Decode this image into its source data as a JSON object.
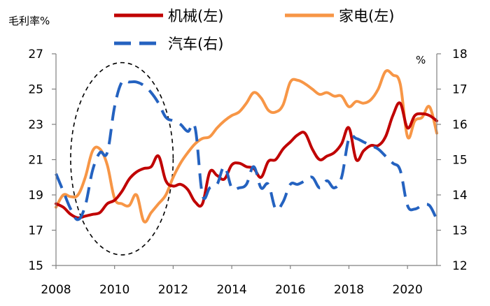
{
  "chart_data": {
    "type": "line",
    "title": "",
    "left_axis": {
      "label": "毛利率%",
      "ylim": [
        15,
        27
      ],
      "ticks": [
        15,
        17,
        19,
        21,
        23,
        25,
        27
      ],
      "tick_labels": [
        "15",
        "17",
        "19",
        "21",
        "23",
        "25",
        "27"
      ]
    },
    "right_axis": {
      "label": "%",
      "ylim": [
        12,
        18
      ],
      "ticks": [
        12,
        13,
        14,
        15,
        16,
        17,
        18
      ],
      "tick_labels": [
        "12",
        "13",
        "14",
        "15",
        "16",
        "17",
        "18"
      ]
    },
    "x_axis": {
      "xlim": [
        2008,
        2021
      ],
      "ticks": [
        2008,
        2010,
        2012,
        2014,
        2016,
        2018,
        2020
      ],
      "tick_labels": [
        "2008",
        "2010",
        "2012",
        "2014",
        "2016",
        "2018",
        "2020"
      ]
    },
    "series": [
      {
        "name": "机械(左)",
        "axis": "left",
        "color": "#C00000",
        "style": "solid",
        "points": [
          [
            2008.0,
            18.5
          ],
          [
            2008.25,
            18.3
          ],
          [
            2008.5,
            17.9
          ],
          [
            2008.75,
            17.7
          ],
          [
            2009.0,
            17.8
          ],
          [
            2009.25,
            17.9
          ],
          [
            2009.5,
            18.0
          ],
          [
            2009.75,
            18.5
          ],
          [
            2010.0,
            18.7
          ],
          [
            2010.25,
            19.2
          ],
          [
            2010.5,
            19.9
          ],
          [
            2010.75,
            20.3
          ],
          [
            2011.0,
            20.5
          ],
          [
            2011.25,
            20.6
          ],
          [
            2011.5,
            21.2
          ],
          [
            2011.75,
            19.8
          ],
          [
            2012.0,
            19.5
          ],
          [
            2012.25,
            19.6
          ],
          [
            2012.5,
            19.3
          ],
          [
            2012.75,
            18.6
          ],
          [
            2013.0,
            18.5
          ],
          [
            2013.25,
            20.3
          ],
          [
            2013.5,
            20.1
          ],
          [
            2013.75,
            19.9
          ],
          [
            2014.0,
            20.7
          ],
          [
            2014.25,
            20.8
          ],
          [
            2014.5,
            20.6
          ],
          [
            2014.75,
            20.5
          ],
          [
            2015.0,
            20.0
          ],
          [
            2015.25,
            20.9
          ],
          [
            2015.5,
            21.0
          ],
          [
            2015.75,
            21.6
          ],
          [
            2016.0,
            22.0
          ],
          [
            2016.25,
            22.4
          ],
          [
            2016.5,
            22.5
          ],
          [
            2016.75,
            21.6
          ],
          [
            2017.0,
            21.0
          ],
          [
            2017.25,
            21.2
          ],
          [
            2017.5,
            21.4
          ],
          [
            2017.75,
            21.9
          ],
          [
            2018.0,
            22.8
          ],
          [
            2018.25,
            21.0
          ],
          [
            2018.5,
            21.5
          ],
          [
            2018.75,
            21.8
          ],
          [
            2019.0,
            21.8
          ],
          [
            2019.25,
            22.3
          ],
          [
            2019.5,
            23.5
          ],
          [
            2019.75,
            24.2
          ],
          [
            2020.0,
            22.8
          ],
          [
            2020.25,
            23.5
          ],
          [
            2020.5,
            23.6
          ],
          [
            2020.75,
            23.5
          ],
          [
            2021.0,
            23.2
          ]
        ]
      },
      {
        "name": "家电(左)",
        "axis": "left",
        "color": "#F79646",
        "style": "solid",
        "points": [
          [
            2008.0,
            18.3
          ],
          [
            2008.25,
            19.0
          ],
          [
            2008.5,
            18.9
          ],
          [
            2008.75,
            19.0
          ],
          [
            2009.0,
            20.0
          ],
          [
            2009.25,
            21.5
          ],
          [
            2009.5,
            21.6
          ],
          [
            2009.75,
            20.7
          ],
          [
            2010.0,
            18.8
          ],
          [
            2010.25,
            18.5
          ],
          [
            2010.5,
            18.4
          ],
          [
            2010.75,
            19.0
          ],
          [
            2011.0,
            17.5
          ],
          [
            2011.25,
            18.0
          ],
          [
            2011.5,
            18.5
          ],
          [
            2011.75,
            19.0
          ],
          [
            2012.0,
            20.0
          ],
          [
            2012.25,
            20.8
          ],
          [
            2012.5,
            21.4
          ],
          [
            2012.75,
            21.9
          ],
          [
            2013.0,
            22.2
          ],
          [
            2013.25,
            22.3
          ],
          [
            2013.5,
            22.8
          ],
          [
            2013.75,
            23.2
          ],
          [
            2014.0,
            23.5
          ],
          [
            2014.25,
            23.7
          ],
          [
            2014.5,
            24.2
          ],
          [
            2014.75,
            24.8
          ],
          [
            2015.0,
            24.5
          ],
          [
            2015.25,
            23.8
          ],
          [
            2015.5,
            23.7
          ],
          [
            2015.75,
            24.1
          ],
          [
            2016.0,
            25.4
          ],
          [
            2016.25,
            25.5
          ],
          [
            2016.5,
            25.3
          ],
          [
            2016.75,
            25.0
          ],
          [
            2017.0,
            24.7
          ],
          [
            2017.25,
            24.8
          ],
          [
            2017.5,
            24.6
          ],
          [
            2017.75,
            24.6
          ],
          [
            2018.0,
            24.0
          ],
          [
            2018.25,
            24.3
          ],
          [
            2018.5,
            24.2
          ],
          [
            2018.75,
            24.4
          ],
          [
            2019.0,
            25.0
          ],
          [
            2019.25,
            26.0
          ],
          [
            2019.5,
            25.8
          ],
          [
            2019.75,
            25.3
          ],
          [
            2020.0,
            22.3
          ],
          [
            2020.25,
            23.2
          ],
          [
            2020.5,
            23.4
          ],
          [
            2020.75,
            24.0
          ],
          [
            2021.0,
            22.5
          ]
        ]
      },
      {
        "name": "汽车(右)",
        "axis": "right",
        "color": "#2462C0",
        "style": "dashed",
        "points": [
          [
            2008.0,
            14.6
          ],
          [
            2008.25,
            14.1
          ],
          [
            2008.5,
            13.6
          ],
          [
            2008.75,
            13.3
          ],
          [
            2009.0,
            13.7
          ],
          [
            2009.25,
            14.7
          ],
          [
            2009.5,
            15.2
          ],
          [
            2009.75,
            15.2
          ],
          [
            2010.0,
            16.5
          ],
          [
            2010.25,
            17.2
          ],
          [
            2010.5,
            17.2
          ],
          [
            2010.75,
            17.2
          ],
          [
            2011.0,
            17.1
          ],
          [
            2011.25,
            16.9
          ],
          [
            2011.5,
            16.6
          ],
          [
            2011.75,
            16.2
          ],
          [
            2012.0,
            16.1
          ],
          [
            2012.25,
            16.0
          ],
          [
            2012.5,
            15.8
          ],
          [
            2012.75,
            15.9
          ],
          [
            2013.0,
            14.0
          ],
          [
            2013.25,
            14.2
          ],
          [
            2013.5,
            14.3
          ],
          [
            2013.75,
            14.8
          ],
          [
            2014.0,
            14.2
          ],
          [
            2014.25,
            14.2
          ],
          [
            2014.5,
            14.3
          ],
          [
            2014.75,
            14.8
          ],
          [
            2015.0,
            14.2
          ],
          [
            2015.25,
            14.3
          ],
          [
            2015.5,
            13.6
          ],
          [
            2015.75,
            13.8
          ],
          [
            2016.0,
            14.3
          ],
          [
            2016.25,
            14.3
          ],
          [
            2016.5,
            14.4
          ],
          [
            2016.75,
            14.5
          ],
          [
            2017.0,
            14.2
          ],
          [
            2017.25,
            14.4
          ],
          [
            2017.5,
            14.2
          ],
          [
            2017.75,
            14.5
          ],
          [
            2018.0,
            15.6
          ],
          [
            2018.25,
            15.6
          ],
          [
            2018.5,
            15.5
          ],
          [
            2018.75,
            15.4
          ],
          [
            2019.0,
            15.3
          ],
          [
            2019.25,
            15.1
          ],
          [
            2019.5,
            14.9
          ],
          [
            2019.75,
            14.7
          ],
          [
            2020.0,
            13.7
          ],
          [
            2020.25,
            13.6
          ],
          [
            2020.5,
            13.7
          ],
          [
            2020.75,
            13.7
          ],
          [
            2021.0,
            13.3
          ]
        ]
      }
    ],
    "annotation": {
      "shape": "dashed-ellipse",
      "x_range": [
        2008.5,
        2012.0
      ],
      "y_range_left": [
        15.6,
        26.5
      ]
    }
  },
  "legend": {
    "items": [
      {
        "label": "机械(左)",
        "color": "#C00000",
        "style": "solid"
      },
      {
        "label": "家电(左)",
        "color": "#F79646",
        "style": "solid"
      },
      {
        "label": "汽车(右)",
        "color": "#2462C0",
        "style": "dashed"
      }
    ]
  }
}
